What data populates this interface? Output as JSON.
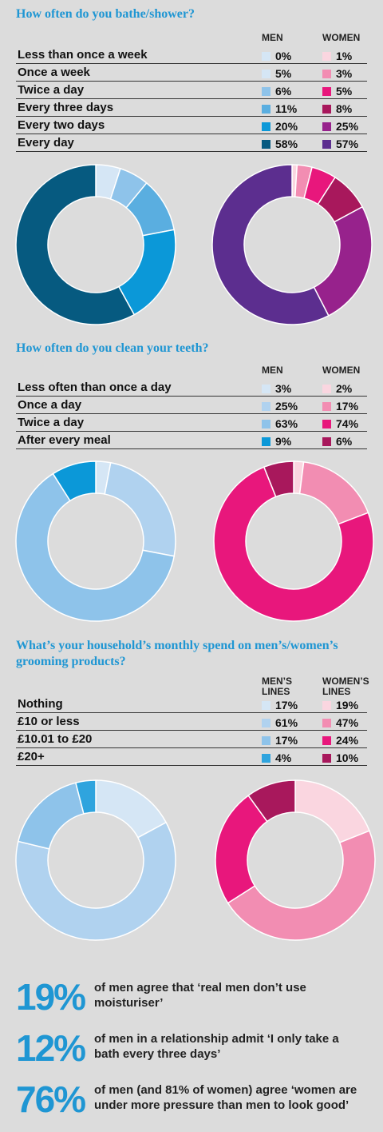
{
  "colors": {
    "title": "#1f96d3",
    "men": [
      "#d5e6f5",
      "#b0d2ef",
      "#8ec3ea",
      "#5aaee0",
      "#0b98d8",
      "#065a80"
    ],
    "women": [
      "#fad6e0",
      "#f28db2",
      "#e8177c",
      "#a8185c",
      "#97228c",
      "#5c2e8f"
    ]
  },
  "sections": [
    {
      "title": "How often do you bathe/shower?",
      "headers": {
        "men": "MEN",
        "women": "WOMEN"
      },
      "rows": [
        {
          "label": "Less than once a week",
          "men": "0%",
          "women": "1%"
        },
        {
          "label": "Once a week",
          "men": "5%",
          "women": "3%"
        },
        {
          "label": "Twice a day",
          "men": "6%",
          "women": "5%"
        },
        {
          "label": "Every three days",
          "men": "11%",
          "women": "8%"
        },
        {
          "label": "Every two days",
          "men": "20%",
          "women": "25%"
        },
        {
          "label": "Every day",
          "men": "58%",
          "women": "57%"
        }
      ]
    },
    {
      "title": "How often do you clean your teeth?",
      "headers": {
        "men": "MEN",
        "women": "WOMEN"
      },
      "rows": [
        {
          "label": "Less often than once a day",
          "men": "3%",
          "women": "2%"
        },
        {
          "label": "Once a day",
          "men": "25%",
          "women": "17%"
        },
        {
          "label": "Twice a day",
          "men": "63%",
          "women": "74%"
        },
        {
          "label": "After every meal",
          "men": "9%",
          "women": "6%"
        }
      ]
    },
    {
      "title": "What’s your household’s monthly spend on men’s/women’s grooming products?",
      "headers": {
        "men": "MEN’S LINES",
        "women": "WOMEN’S LINES"
      },
      "rows": [
        {
          "label": "Nothing",
          "men": "17%",
          "women": "19%"
        },
        {
          "label": "£10 or less",
          "men": "61%",
          "women": "47%"
        },
        {
          "label": "£10.01 to £20",
          "men": "17%",
          "women": "24%"
        },
        {
          "label": "£20+",
          "men": "4%",
          "women": "10%"
        }
      ]
    }
  ],
  "stats": [
    {
      "value": "19%",
      "text": "of men agree that ‘real men don’t use moisturiser’"
    },
    {
      "value": "12%",
      "text": "of men in a relationship admit ‘I only take a bath every three days’"
    },
    {
      "value": "76%",
      "text": "of men (and 81% of women) agree ‘women are under more pressure than men to look good’"
    }
  ],
  "chart_data": [
    {
      "type": "pie",
      "categories": [
        "Less than once a week",
        "Once a week",
        "Twice a day",
        "Every three days",
        "Every two days",
        "Every day"
      ],
      "series": [
        {
          "name": "MEN",
          "values": [
            0,
            5,
            6,
            11,
            20,
            58
          ],
          "colors": [
            "#d5e6f5",
            "#d5e6f5",
            "#8ec3ea",
            "#5aaee0",
            "#0b98d8",
            "#065a80"
          ]
        },
        {
          "name": "WOMEN",
          "values": [
            1,
            3,
            5,
            8,
            25,
            57
          ],
          "colors": [
            "#fad6e0",
            "#f28db2",
            "#e8177c",
            "#a8185c",
            "#97228c",
            "#5c2e8f"
          ]
        }
      ]
    },
    {
      "type": "pie",
      "categories": [
        "Less often than once a day",
        "Once a day",
        "Twice a day",
        "After every meal"
      ],
      "series": [
        {
          "name": "MEN",
          "values": [
            3,
            25,
            63,
            9
          ],
          "colors": [
            "#d5e6f5",
            "#b0d2ef",
            "#8ec3ea",
            "#0b98d8"
          ]
        },
        {
          "name": "WOMEN",
          "values": [
            2,
            17,
            74,
            6
          ],
          "colors": [
            "#fad6e0",
            "#f28db2",
            "#e8177c",
            "#a8185c"
          ]
        }
      ]
    },
    {
      "type": "pie",
      "categories": [
        "Nothing",
        "£10 or less",
        "£10.01 to £20",
        "£20+"
      ],
      "series": [
        {
          "name": "MEN’S LINES",
          "values": [
            17,
            61,
            17,
            4
          ],
          "colors": [
            "#d5e6f5",
            "#b0d2ef",
            "#8ec3ea",
            "#2fa4de"
          ]
        },
        {
          "name": "WOMEN’S LINES",
          "values": [
            19,
            47,
            24,
            10
          ],
          "colors": [
            "#fad6e0",
            "#f28db2",
            "#e8177c",
            "#a8185c"
          ]
        }
      ]
    }
  ]
}
